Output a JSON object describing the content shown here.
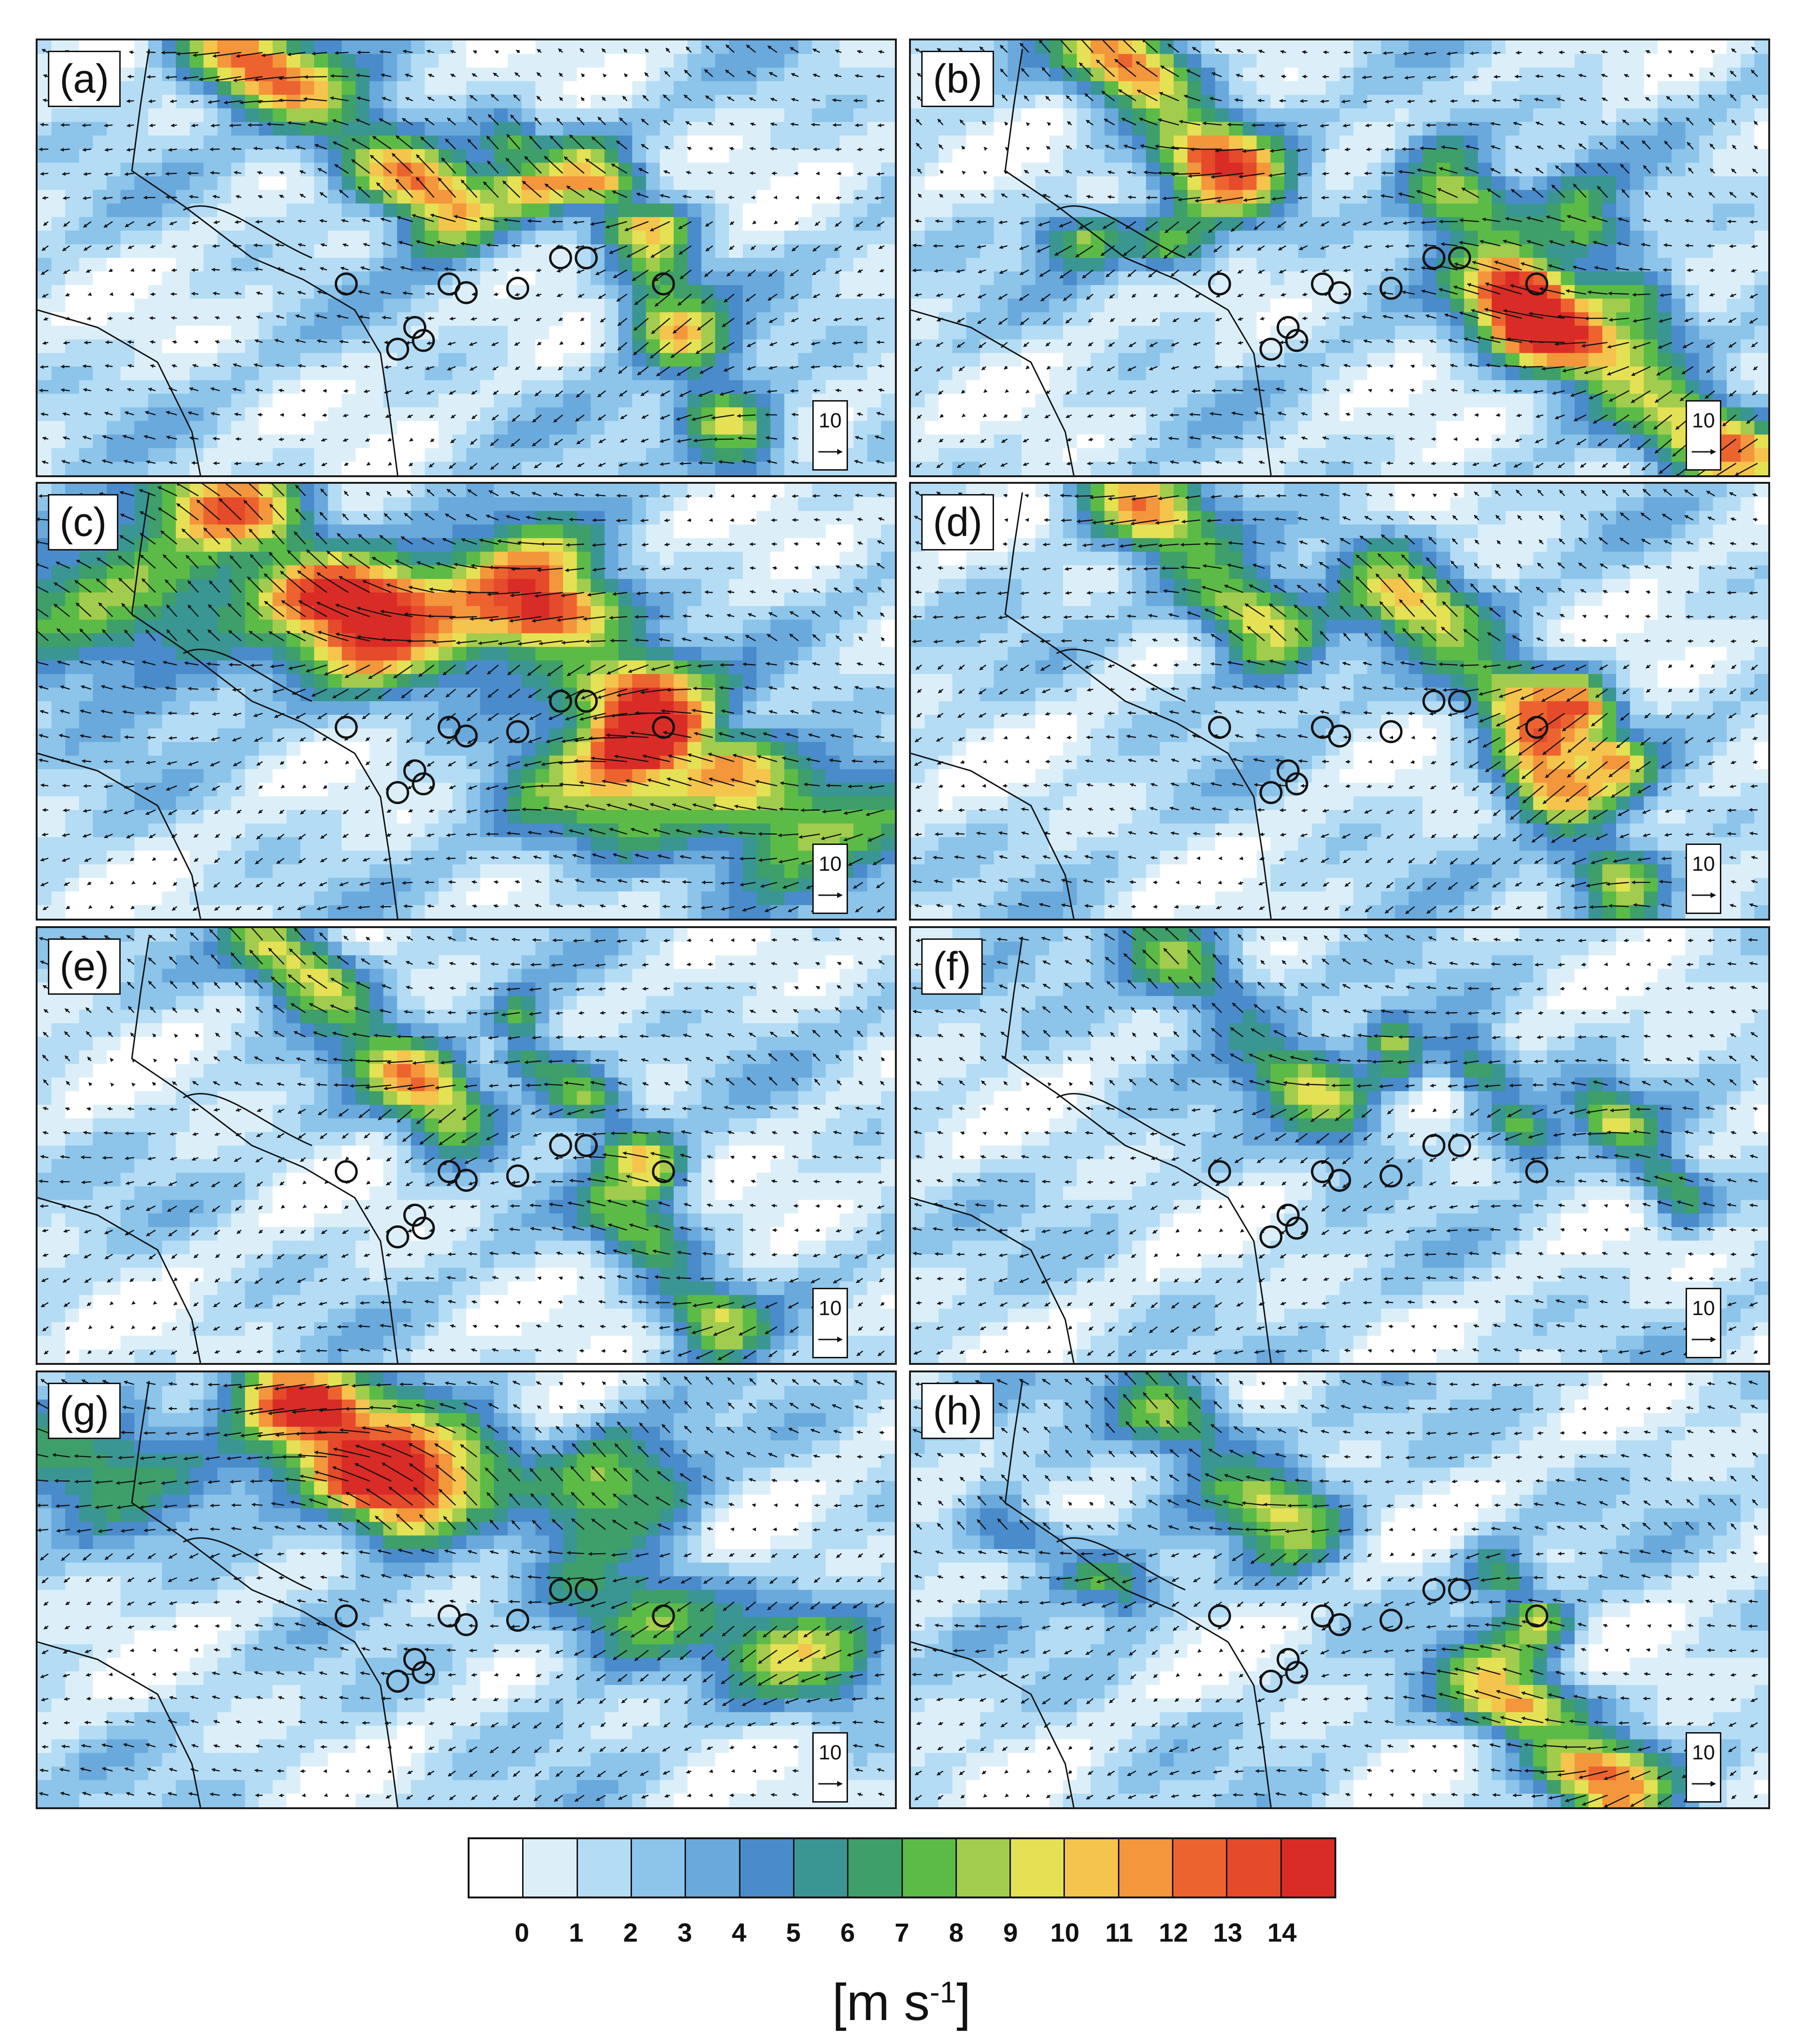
{
  "figure": {
    "panels": [
      {
        "label": "(a)",
        "ref_vector": "10",
        "seed": 11,
        "jets": [
          [
            0.21,
            0.0,
            0.48,
            0.38,
            12,
            1.0
          ],
          [
            0.64,
            0.3,
            0.72,
            0.45,
            9,
            0.8
          ],
          [
            0.73,
            0.62,
            0.82,
            0.92,
            9,
            0.9
          ],
          [
            0.55,
            0.22,
            0.58,
            0.35,
            6,
            0.6
          ]
        ]
      },
      {
        "label": "(b)",
        "ref_vector": "10",
        "seed": 23,
        "jets": [
          [
            0.23,
            0.0,
            0.38,
            0.32,
            12,
            1.0
          ],
          [
            0.62,
            0.3,
            0.72,
            0.62,
            9,
            1.0
          ],
          [
            0.72,
            0.62,
            0.98,
            0.98,
            11,
            1.0
          ],
          [
            0.18,
            0.45,
            0.32,
            0.48,
            7,
            0.6
          ],
          [
            0.78,
            0.4,
            0.86,
            0.62,
            7,
            0.8
          ]
        ]
      },
      {
        "label": "(c)",
        "ref_vector": "10",
        "seed": 37,
        "jets": [
          [
            0.2,
            0.0,
            0.38,
            0.3,
            11,
            1.2
          ],
          [
            0.58,
            0.25,
            0.72,
            0.5,
            10,
            1.2
          ],
          [
            0.7,
            0.58,
            0.82,
            0.66,
            9,
            1.0
          ],
          [
            0.0,
            0.3,
            0.55,
            0.3,
            7,
            1.6
          ],
          [
            0.62,
            0.72,
            0.95,
            0.78,
            7,
            1.4
          ]
        ]
      },
      {
        "label": "(d)",
        "ref_vector": "10",
        "seed": 41,
        "jets": [
          [
            0.24,
            0.0,
            0.42,
            0.35,
            10,
            1.0
          ],
          [
            0.55,
            0.2,
            0.74,
            0.55,
            9,
            1.0
          ],
          [
            0.73,
            0.65,
            0.84,
            0.95,
            9,
            0.9
          ],
          [
            0.78,
            0.48,
            0.83,
            0.65,
            7,
            0.6
          ]
        ]
      },
      {
        "label": "(e)",
        "ref_vector": "10",
        "seed": 53,
        "jets": [
          [
            0.27,
            0.02,
            0.48,
            0.42,
            10,
            0.9
          ],
          [
            0.56,
            0.2,
            0.57,
            0.3,
            7,
            0.5
          ],
          [
            0.62,
            0.35,
            0.72,
            0.55,
            8,
            0.7
          ],
          [
            0.68,
            0.65,
            0.8,
            0.92,
            7,
            0.8
          ]
        ]
      },
      {
        "label": "(f)",
        "ref_vector": "10",
        "seed": 67,
        "jets": [
          [
            0.28,
            0.02,
            0.5,
            0.42,
            8,
            0.9
          ],
          [
            0.56,
            0.25,
            0.57,
            0.32,
            7,
            0.5
          ],
          [
            0.65,
            0.3,
            0.72,
            0.48,
            7,
            0.6
          ],
          [
            0.8,
            0.4,
            0.9,
            0.62,
            7,
            0.6
          ]
        ]
      },
      {
        "label": "(g)",
        "ref_vector": "10",
        "seed": 79,
        "jets": [
          [
            0.28,
            0.02,
            0.42,
            0.3,
            10,
            1.0
          ],
          [
            0.45,
            0.2,
            0.7,
            0.25,
            7,
            1.2
          ],
          [
            0.65,
            0.55,
            0.92,
            0.65,
            7,
            1.2
          ],
          [
            0.0,
            0.18,
            0.4,
            0.18,
            6,
            1.4
          ]
        ]
      },
      {
        "label": "(h)",
        "ref_vector": "10",
        "seed": 83,
        "jets": [
          [
            0.28,
            0.05,
            0.45,
            0.35,
            8,
            1.0
          ],
          [
            0.68,
            0.45,
            0.74,
            0.58,
            7,
            0.6
          ],
          [
            0.68,
            0.72,
            0.82,
            0.95,
            11,
            1.0
          ],
          [
            0.1,
            0.35,
            0.25,
            0.5,
            6,
            0.7
          ]
        ]
      }
    ],
    "colorbar": {
      "colors": [
        "#ffffff",
        "#dceff9",
        "#b4dcf4",
        "#8cc4ea",
        "#6aa9dc",
        "#4a8bcb",
        "#3a9693",
        "#3e9f6a",
        "#5cbb47",
        "#a2cc4d",
        "#e4e154",
        "#f5c44d",
        "#f3963c",
        "#ec6330",
        "#e54a2b",
        "#d92c27"
      ],
      "ticks": [
        "0",
        "1",
        "2",
        "3",
        "4",
        "5",
        "6",
        "7",
        "8",
        "9",
        "10",
        "11",
        "12",
        "13",
        "14"
      ]
    },
    "unit": {
      "main": "[m s",
      "sup": "-1",
      "tail": "]"
    },
    "stations": [
      [
        0.36,
        0.56
      ],
      [
        0.48,
        0.56
      ],
      [
        0.5,
        0.58
      ],
      [
        0.56,
        0.57
      ],
      [
        0.61,
        0.5
      ],
      [
        0.64,
        0.5
      ],
      [
        0.73,
        0.56
      ],
      [
        0.44,
        0.66
      ],
      [
        0.42,
        0.71
      ],
      [
        0.45,
        0.69
      ]
    ]
  }
}
